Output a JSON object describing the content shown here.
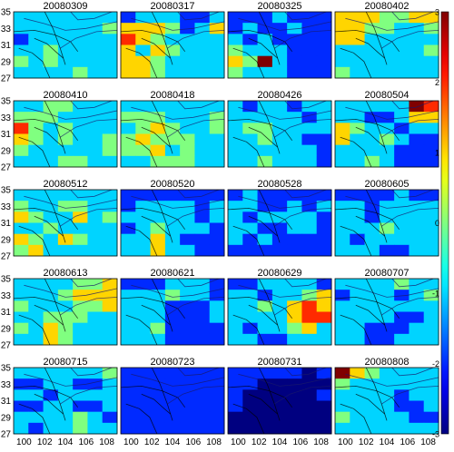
{
  "chart_data": {
    "type": "heatmap",
    "layout": {
      "rows": 5,
      "cols": 4
    },
    "panel_titles": [
      "20080309",
      "20080317",
      "20080325",
      "20080402",
      "20080410",
      "20080418",
      "20080426",
      "20080504",
      "20080512",
      "20080520",
      "20080528",
      "20080605",
      "20080613",
      "20080621",
      "20080629",
      "20080707",
      "20080715",
      "20080723",
      "20080731",
      "20080808"
    ],
    "x_ticks": [
      "100",
      "102",
      "104",
      "106",
      "108"
    ],
    "y_ticks": [
      "35",
      "33",
      "31",
      "29",
      "27"
    ],
    "xlim": [
      99,
      109
    ],
    "ylim": [
      27,
      35
    ],
    "grid_cols": 7,
    "grid_rows": 6,
    "colorbar": {
      "min": -3,
      "max": 3,
      "ticks": [
        "3",
        "2",
        "1",
        "0",
        "-1",
        "-2",
        "-3"
      ],
      "colormap": "jet"
    },
    "overlay": "fault lines (black) and rivers (blue) over gridded cells",
    "panels": [
      [
        [
          -1,
          -1,
          -1,
          -1,
          -1,
          -1,
          -1
        ],
        [
          -1,
          -1,
          -1,
          -1,
          -1,
          -1,
          0
        ],
        [
          -2,
          -1,
          -1,
          -1,
          -1,
          -1,
          -1
        ],
        [
          -1,
          -1,
          0,
          -1,
          -1,
          -1,
          -1
        ],
        [
          0,
          -1,
          0,
          -1,
          -1,
          -1,
          -1
        ],
        [
          -1,
          -1,
          -1,
          -1,
          0,
          -1,
          -1
        ]
      ],
      [
        [
          -2,
          -1,
          -1,
          -1,
          -2,
          -2,
          -1
        ],
        [
          1,
          1,
          1,
          0,
          -2,
          -1,
          1
        ],
        [
          2,
          1,
          0,
          -1,
          -1,
          -1,
          -1
        ],
        [
          1,
          -1,
          1,
          0,
          -1,
          -1,
          -1
        ],
        [
          1,
          1,
          0,
          -1,
          -1,
          -1,
          -1
        ],
        [
          1,
          1,
          0,
          -1,
          -1,
          -1,
          -1
        ]
      ],
      [
        [
          -2,
          -2,
          -2,
          -1,
          -2,
          -2,
          -2
        ],
        [
          -2,
          -1,
          -2,
          -2,
          -1,
          -2,
          -2
        ],
        [
          -1,
          -2,
          -1,
          -2,
          -2,
          -2,
          -2
        ],
        [
          0,
          -1,
          -1,
          -1,
          -2,
          -2,
          -2
        ],
        [
          1,
          0,
          3,
          -1,
          -2,
          -2,
          -2
        ],
        [
          0,
          -1,
          -1,
          -1,
          -2,
          -2,
          -2
        ]
      ],
      [
        [
          1,
          1,
          1,
          0,
          0,
          1,
          1
        ],
        [
          1,
          1,
          0,
          0,
          -1,
          -1,
          0
        ],
        [
          1,
          1,
          -1,
          -1,
          -1,
          -1,
          -1
        ],
        [
          -1,
          -1,
          -1,
          -1,
          -1,
          -1,
          0
        ],
        [
          -1,
          -1,
          -1,
          -1,
          -1,
          -1,
          -1
        ],
        [
          0,
          -1,
          -1,
          -1,
          -1,
          -1,
          -1
        ]
      ],
      [
        [
          -1,
          -1,
          0,
          0,
          -1,
          -1,
          -1
        ],
        [
          0,
          0,
          0,
          -1,
          -1,
          -1,
          -1
        ],
        [
          2,
          0,
          -1,
          0,
          -1,
          -1,
          -1
        ],
        [
          1,
          0,
          -1,
          0,
          -1,
          -1,
          0
        ],
        [
          0,
          -1,
          -1,
          -1,
          -1,
          -1,
          0
        ],
        [
          -1,
          -1,
          -1,
          0,
          0,
          -1,
          -1
        ]
      ],
      [
        [
          -1,
          -1,
          -1,
          -1,
          -1,
          -1,
          -1
        ],
        [
          0,
          0,
          0,
          -1,
          -1,
          -1,
          0
        ],
        [
          -1,
          0,
          1,
          0,
          -1,
          -1,
          0
        ],
        [
          0,
          1,
          0,
          0,
          0,
          -1,
          -1
        ],
        [
          0,
          0,
          1,
          -1,
          0,
          -1,
          -1
        ],
        [
          -1,
          -1,
          0,
          0,
          0,
          -1,
          -1
        ]
      ],
      [
        [
          -1,
          -2,
          -1,
          -1,
          -2,
          -1,
          -1
        ],
        [
          -1,
          -1,
          -1,
          -1,
          -1,
          -2,
          -1
        ],
        [
          -1,
          0,
          0,
          -1,
          -1,
          -1,
          -1
        ],
        [
          -1,
          -1,
          0,
          -1,
          -1,
          -2,
          -2
        ],
        [
          -1,
          -1,
          -1,
          -1,
          -1,
          -1,
          -2
        ],
        [
          -1,
          -1,
          0,
          -1,
          -1,
          -1,
          -2
        ]
      ],
      [
        [
          -1,
          -1,
          -1,
          -1,
          -1,
          3,
          2
        ],
        [
          -1,
          -1,
          -2,
          -2,
          -1,
          1,
          1
        ],
        [
          1,
          0,
          -1,
          -1,
          -2,
          -1,
          -1
        ],
        [
          1,
          -1,
          -1,
          0,
          -1,
          -2,
          -2
        ],
        [
          -1,
          -1,
          -1,
          -1,
          -2,
          -2,
          -2
        ],
        [
          -1,
          -1,
          0,
          -1,
          -2,
          -2,
          -2
        ]
      ],
      [
        [
          -1,
          -1,
          -1,
          -1,
          -1,
          -1,
          -1
        ],
        [
          0,
          -1,
          -1,
          0,
          0,
          -1,
          -1
        ],
        [
          1,
          0,
          -1,
          -1,
          1,
          -1,
          0
        ],
        [
          -1,
          -1,
          0,
          -1,
          -1,
          -1,
          -1
        ],
        [
          1,
          0,
          -1,
          1,
          0,
          -1,
          -1
        ],
        [
          0,
          1,
          -1,
          -1,
          -1,
          -1,
          -1
        ]
      ],
      [
        [
          -2,
          -2,
          -2,
          -2,
          -2,
          -2,
          -2
        ],
        [
          -2,
          -1,
          -1,
          -1,
          -1,
          -2,
          -1
        ],
        [
          -1,
          -1,
          -1,
          -1,
          -1,
          -2,
          -1
        ],
        [
          -2,
          -1,
          0,
          -1,
          -1,
          -1,
          -2
        ],
        [
          -1,
          -1,
          1,
          -1,
          -2,
          -2,
          -2
        ],
        [
          -1,
          -1,
          1,
          -1,
          -1,
          -2,
          -2
        ]
      ],
      [
        [
          -2,
          -1,
          -2,
          -2,
          -2,
          -2,
          -2
        ],
        [
          -1,
          -1,
          -2,
          -2,
          -1,
          -2,
          -1
        ],
        [
          -1,
          -2,
          -1,
          -1,
          -1,
          -1,
          -2
        ],
        [
          -1,
          -1,
          -2,
          -2,
          -1,
          -1,
          -2
        ],
        [
          -1,
          -2,
          -1,
          -2,
          -2,
          -2,
          -2
        ],
        [
          -2,
          -2,
          -2,
          -2,
          -2,
          -2,
          -2
        ]
      ],
      [
        [
          -2,
          -2,
          -2,
          -2,
          -1,
          -2,
          -2
        ],
        [
          -1,
          -1,
          -2,
          -1,
          -1,
          -1,
          -1
        ],
        [
          -1,
          -1,
          -2,
          -1,
          -1,
          -1,
          -1
        ],
        [
          -1,
          -1,
          -1,
          0,
          -1,
          -1,
          -1
        ],
        [
          -1,
          -2,
          -1,
          -1,
          -1,
          -1,
          -1
        ],
        [
          -1,
          -1,
          -1,
          -2,
          -2,
          -1,
          -1
        ]
      ],
      [
        [
          -1,
          -1,
          -1,
          -1,
          0,
          0,
          1
        ],
        [
          -1,
          -1,
          -1,
          0,
          1,
          1,
          1
        ],
        [
          0,
          -1,
          -1,
          -1,
          0,
          0,
          1
        ],
        [
          -1,
          -1,
          0,
          0,
          0,
          -1,
          -1
        ],
        [
          0,
          -1,
          1,
          0,
          -1,
          -1,
          -1
        ],
        [
          -1,
          -1,
          1,
          0,
          -1,
          -1,
          -1
        ]
      ],
      [
        [
          -2,
          -2,
          -2,
          -1,
          -1,
          -1,
          -2
        ],
        [
          -1,
          -1,
          -1,
          0,
          -1,
          -1,
          -2
        ],
        [
          -1,
          -1,
          -1,
          -2,
          -2,
          -2,
          -1
        ],
        [
          -1,
          -1,
          -1,
          -2,
          -2,
          -2,
          -1
        ],
        [
          -1,
          -1,
          0,
          -2,
          -2,
          -2,
          -2
        ],
        [
          -1,
          -1,
          -1,
          -2,
          -2,
          -2,
          -2
        ]
      ],
      [
        [
          -2,
          -2,
          -1,
          -1,
          -1,
          -1,
          -2
        ],
        [
          -1,
          -1,
          -2,
          -1,
          -1,
          0,
          1
        ],
        [
          -1,
          -1,
          0,
          -1,
          1,
          2,
          1
        ],
        [
          -1,
          -1,
          -1,
          -1,
          1,
          2,
          2
        ],
        [
          -1,
          -2,
          -1,
          -1,
          0,
          1,
          -1
        ],
        [
          -1,
          -1,
          -2,
          -2,
          -1,
          -1,
          -1
        ]
      ],
      [
        [
          -1,
          -1,
          -1,
          -1,
          0,
          -1,
          -1
        ],
        [
          -2,
          -1,
          -1,
          -1,
          -2,
          -1,
          0
        ],
        [
          -1,
          -1,
          -1,
          -1,
          -1,
          -1,
          -1
        ],
        [
          -1,
          -1,
          -1,
          -1,
          -2,
          -2,
          -1
        ],
        [
          -1,
          -1,
          -2,
          -2,
          -2,
          -1,
          -1
        ],
        [
          -1,
          -1,
          -2,
          -2,
          -1,
          -1,
          -1
        ]
      ],
      [
        [
          -1,
          -1,
          -1,
          -1,
          -1,
          -1,
          0
        ],
        [
          -2,
          -2,
          -1,
          -1,
          -2,
          -2,
          -1
        ],
        [
          -1,
          -1,
          -2,
          -1,
          -1,
          -1,
          -1
        ],
        [
          -2,
          -2,
          -1,
          -1,
          -2,
          -2,
          -1
        ],
        [
          -1,
          -1,
          -1,
          -1,
          0,
          -1,
          -2
        ],
        [
          -1,
          -2,
          -1,
          -1,
          0,
          -1,
          -1
        ]
      ],
      [
        [
          -2,
          -2,
          -2,
          -2,
          -2,
          -2,
          -2
        ],
        [
          -2,
          -2,
          -2,
          -2,
          -2,
          -2,
          -2
        ],
        [
          -2,
          -2,
          -2,
          -2,
          -2,
          -2,
          -2
        ],
        [
          -2,
          -2,
          -2,
          -2,
          -2,
          -2,
          -2
        ],
        [
          -2,
          -2,
          -2,
          -2,
          -2,
          -2,
          -2
        ],
        [
          -2,
          -2,
          -2,
          -2,
          -2,
          -2,
          -2
        ]
      ],
      [
        [
          -2,
          -2,
          -2,
          -2,
          -2,
          -3,
          -2
        ],
        [
          -2,
          -2,
          -3,
          -3,
          -3,
          -3,
          -3
        ],
        [
          -2,
          -3,
          -3,
          -3,
          -3,
          -3,
          -2
        ],
        [
          -2,
          -3,
          -3,
          -3,
          -3,
          -3,
          -3
        ],
        [
          -3,
          -3,
          -3,
          -3,
          -3,
          -3,
          -3
        ],
        [
          -3,
          -3,
          -3,
          -3,
          -3,
          -3,
          -3
        ]
      ],
      [
        [
          3,
          1,
          0,
          -1,
          -1,
          -1,
          -1
        ],
        [
          0,
          -1,
          -1,
          -1,
          -1,
          -1,
          -1
        ],
        [
          -1,
          -1,
          -1,
          -1,
          -2,
          -1,
          -1
        ],
        [
          -1,
          -1,
          -1,
          -1,
          -2,
          -2,
          -1
        ],
        [
          0,
          -1,
          -1,
          -1,
          -1,
          -2,
          -2
        ],
        [
          -1,
          -1,
          -1,
          -1,
          -1,
          -1,
          -1
        ]
      ]
    ]
  }
}
